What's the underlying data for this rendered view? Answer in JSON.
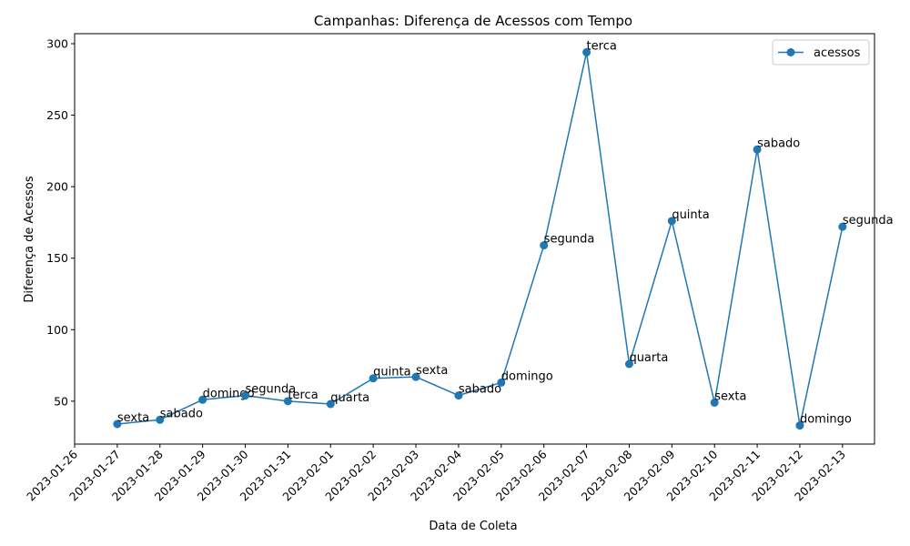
{
  "chart_data": {
    "type": "line",
    "title": "Campanhas: Diferença de Acessos com Tempo",
    "xlabel": "Data de Coleta",
    "ylabel": "Diferença de Acessos",
    "x_ticks": [
      "2023-01-26",
      "2023-01-27",
      "2023-01-28",
      "2023-01-29",
      "2023-01-30",
      "2023-01-31",
      "2023-02-01",
      "2023-02-02",
      "2023-02-03",
      "2023-02-04",
      "2023-02-05",
      "2023-02-06",
      "2023-02-07",
      "2023-02-08",
      "2023-02-09",
      "2023-02-10",
      "2023-02-11",
      "2023-02-12",
      "2023-02-13"
    ],
    "y_ticks": [
      50,
      100,
      150,
      200,
      250,
      300
    ],
    "xlim": [
      "2023-01-26",
      "2023-02-13"
    ],
    "ylim": [
      20,
      307
    ],
    "legend": "top-right",
    "color": "#1f77b4",
    "series": [
      {
        "name": "acessos",
        "points": [
          {
            "x": "2023-01-27",
            "y": 34,
            "label": "sexta"
          },
          {
            "x": "2023-01-28",
            "y": 37,
            "label": "sabado"
          },
          {
            "x": "2023-01-29",
            "y": 51,
            "label": "domingo"
          },
          {
            "x": "2023-01-30",
            "y": 54,
            "label": "segunda"
          },
          {
            "x": "2023-01-31",
            "y": 50,
            "label": "terca"
          },
          {
            "x": "2023-02-01",
            "y": 48,
            "label": "quarta"
          },
          {
            "x": "2023-02-02",
            "y": 66,
            "label": "quinta"
          },
          {
            "x": "2023-02-03",
            "y": 67,
            "label": "sexta"
          },
          {
            "x": "2023-02-04",
            "y": 54,
            "label": "sabado"
          },
          {
            "x": "2023-02-05",
            "y": 63,
            "label": "domingo"
          },
          {
            "x": "2023-02-06",
            "y": 159,
            "label": "segunda"
          },
          {
            "x": "2023-02-07",
            "y": 294,
            "label": "terca"
          },
          {
            "x": "2023-02-08",
            "y": 76,
            "label": "quarta"
          },
          {
            "x": "2023-02-09",
            "y": 176,
            "label": "quinta"
          },
          {
            "x": "2023-02-10",
            "y": 49,
            "label": "sexta"
          },
          {
            "x": "2023-02-11",
            "y": 226,
            "label": "sabado"
          },
          {
            "x": "2023-02-12",
            "y": 33,
            "label": "domingo"
          },
          {
            "x": "2023-02-13",
            "y": 172,
            "label": "segunda"
          }
        ]
      }
    ]
  }
}
